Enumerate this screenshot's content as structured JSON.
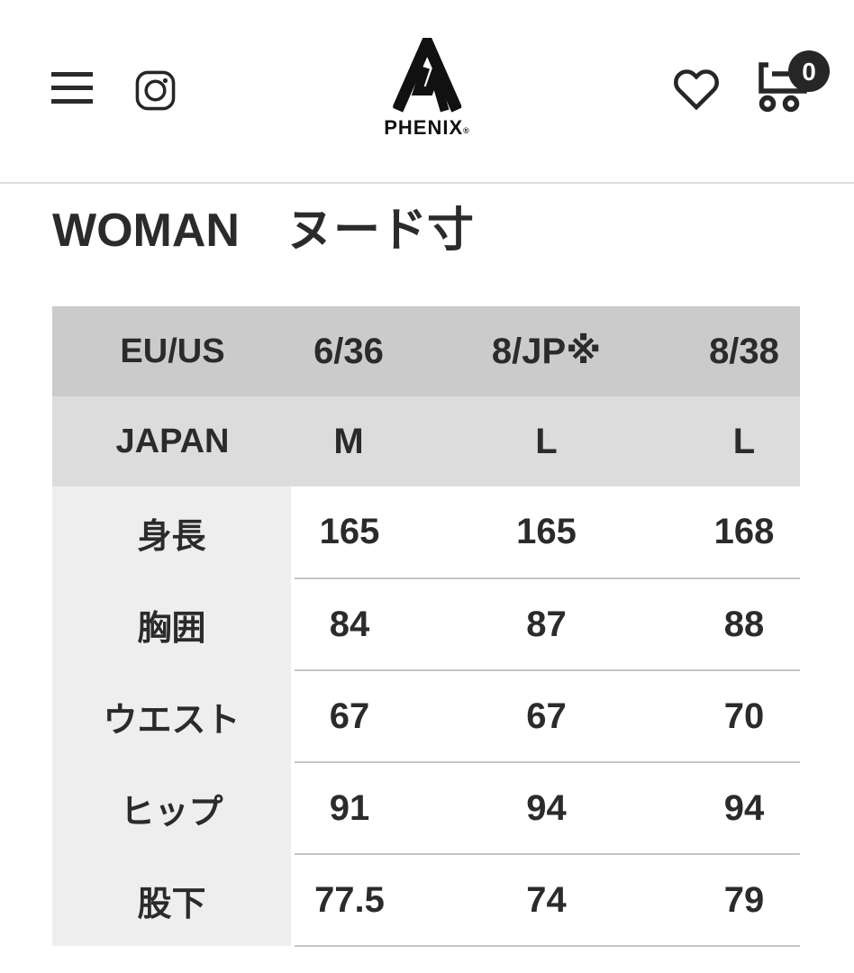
{
  "header": {
    "brand": "PHENIX",
    "brand_mark": "®",
    "cart_count": "0",
    "icons": [
      "hamburger-icon",
      "instagram-icon",
      "phenix-triangle-logo",
      "heart-icon",
      "cart-icon"
    ],
    "accent_color": "#262626"
  },
  "page": {
    "title": "WOMAN　ヌード寸"
  },
  "size_table": {
    "header_rows": [
      {
        "label": "EU/US",
        "values": [
          "6/36",
          "8/JP※",
          "8/38"
        ]
      },
      {
        "label": "JAPAN",
        "values": [
          "M",
          "L",
          "L"
        ]
      }
    ],
    "body_rows": [
      {
        "label": "身長",
        "values": [
          "165",
          "165",
          "168"
        ]
      },
      {
        "label": "胸囲",
        "values": [
          "84",
          "87",
          "88"
        ]
      },
      {
        "label": "ウエスト",
        "values": [
          "67",
          "67",
          "70"
        ]
      },
      {
        "label": "ヒップ",
        "values": [
          "91",
          "94",
          "94"
        ]
      },
      {
        "label": "股下",
        "values": [
          "77.5",
          "74",
          "79"
        ]
      }
    ],
    "colors": {
      "header_row1_bg": "#cbcbcb",
      "header_row2_bg": "#dcdcdc",
      "label_column_bg": "#eeeeee",
      "row_divider": "#c4c4c4",
      "text": "#2b2b2b"
    }
  }
}
